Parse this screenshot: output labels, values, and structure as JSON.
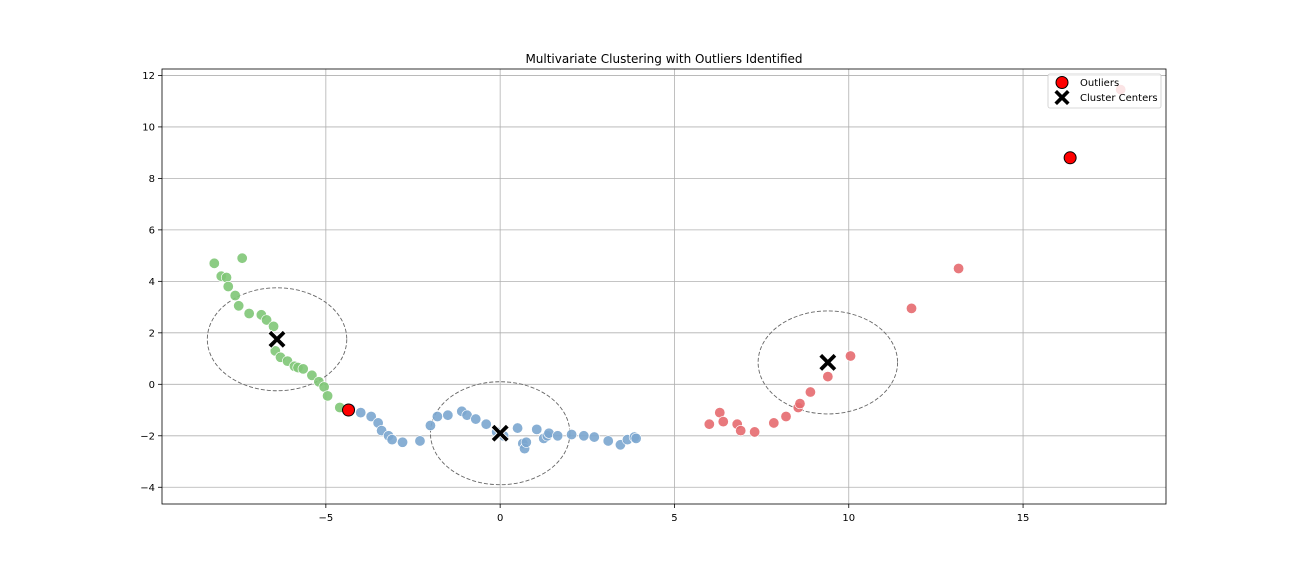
{
  "chart_data": {
    "type": "scatter",
    "title": "Multivariate Clustering with Outliers Identified",
    "xlabel": "",
    "ylabel": "",
    "xlim": [
      -9.7,
      19.1
    ],
    "ylim": [
      -4.65,
      12.25
    ],
    "xticks": [
      -5,
      0,
      5,
      10,
      15
    ],
    "yticks": [
      -4,
      -2,
      0,
      2,
      4,
      6,
      8,
      10,
      12
    ],
    "grid": true,
    "legend_position": "top-right",
    "colors": {
      "cluster_0": "#7ba6cf",
      "cluster_1": "#80c677",
      "cluster_2": "#e66a6f",
      "outlier": "#ff0000",
      "center": "#000000",
      "circle": "#666666"
    },
    "series": [
      {
        "color": "#7ba6cf",
        "x": [
          -4.3,
          -4.0,
          -3.7,
          -3.5,
          -3.4,
          -3.2,
          -3.1,
          -2.8,
          -2.3,
          -2.0,
          -1.8,
          -1.5,
          -1.1,
          -0.95,
          -0.7,
          -0.4,
          -0.1,
          0.1,
          0.5,
          0.65,
          0.7,
          0.75,
          1.05,
          1.25,
          1.35,
          1.4,
          1.65,
          2.05,
          2.4,
          2.7,
          3.1,
          3.45,
          3.65,
          3.85,
          3.9
        ],
        "y": [
          -0.95,
          -1.1,
          -1.25,
          -1.5,
          -1.8,
          -2.0,
          -2.15,
          -2.25,
          -2.2,
          -1.6,
          -1.25,
          -1.2,
          -1.05,
          -1.2,
          -1.35,
          -1.55,
          -1.85,
          -2.0,
          -1.7,
          -2.3,
          -2.5,
          -2.25,
          -1.75,
          -2.1,
          -2.0,
          -1.9,
          -2.0,
          -1.95,
          -2.0,
          -2.05,
          -2.2,
          -2.35,
          -2.15,
          -2.05,
          -2.1
        ]
      },
      {
        "color": "#80c677",
        "x": [
          -8.2,
          -8.0,
          -7.85,
          -7.8,
          -7.6,
          -7.5,
          -7.4,
          -7.2,
          -6.85,
          -6.7,
          -6.5,
          -6.45,
          -6.3,
          -6.1,
          -5.9,
          -5.8,
          -5.65,
          -5.4,
          -5.2,
          -5.05,
          -4.95,
          -4.6
        ],
        "y": [
          4.7,
          4.2,
          4.15,
          3.8,
          3.45,
          3.05,
          4.9,
          2.75,
          2.7,
          2.5,
          2.25,
          1.3,
          1.05,
          0.9,
          0.7,
          0.65,
          0.6,
          0.35,
          0.1,
          -0.1,
          -0.45,
          -0.9
        ]
      },
      {
        "color": "#e66a6f",
        "x": [
          6.0,
          6.3,
          6.4,
          6.8,
          6.9,
          7.3,
          7.85,
          8.2,
          8.55,
          8.6,
          8.9,
          9.4,
          10.05,
          11.8,
          13.15,
          17.8
        ],
        "y": [
          -1.55,
          -1.1,
          -1.45,
          -1.55,
          -1.8,
          -1.85,
          -1.5,
          -1.25,
          -0.9,
          -0.75,
          -0.3,
          0.3,
          1.1,
          2.95,
          4.5,
          11.45
        ]
      },
      {
        "name": "Outliers",
        "color": "#ff0000",
        "x": [
          -4.35,
          16.35
        ],
        "y": [
          -1.0,
          8.8
        ]
      },
      {
        "name": "Cluster Centers",
        "color": "#000000",
        "x": [
          -6.4,
          0.0,
          9.4
        ],
        "y": [
          1.75,
          -1.9,
          0.85
        ]
      }
    ],
    "ellipses": [
      {
        "cx": -6.4,
        "cy": 1.75,
        "rx": 2.0,
        "ry": 2.0
      },
      {
        "cx": 0.0,
        "cy": -1.9,
        "rx": 2.0,
        "ry": 2.0
      },
      {
        "cx": 9.4,
        "cy": 0.85,
        "rx": 2.0,
        "ry": 2.0
      }
    ],
    "legend": [
      {
        "label": "Outliers",
        "marker": "circle"
      },
      {
        "label": "Cluster Centers",
        "marker": "x"
      }
    ]
  }
}
